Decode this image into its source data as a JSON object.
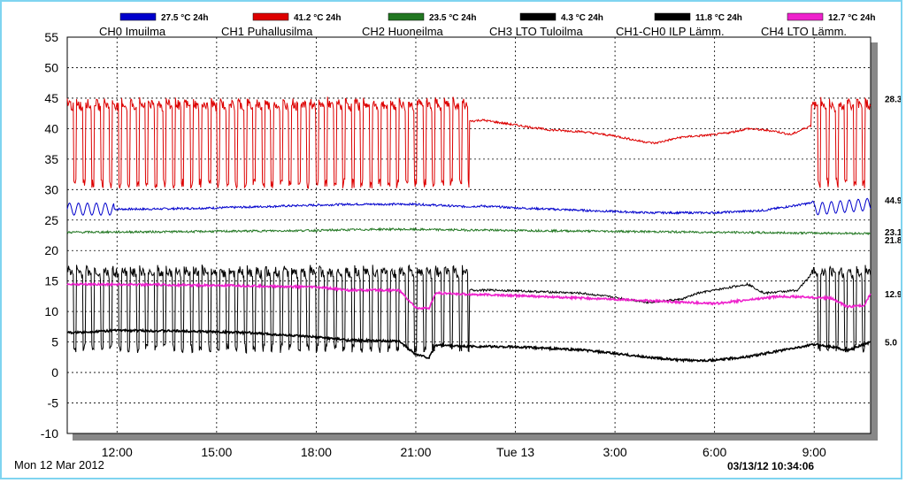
{
  "chart_data": {
    "type": "line",
    "title": "",
    "xlabel": "",
    "ylabel": "",
    "ylim": [
      -10,
      55
    ],
    "yticks": [
      55,
      50,
      45,
      40,
      35,
      30,
      25,
      20,
      15,
      10,
      5,
      0,
      -5,
      -10
    ],
    "xlim_hours": [
      10.5,
      34.7
    ],
    "xticks": [
      {
        "label": "12:00",
        "hour": 12
      },
      {
        "label": "15:00",
        "hour": 15
      },
      {
        "label": "18:00",
        "hour": 18
      },
      {
        "label": "21:00",
        "hour": 21
      },
      {
        "label": "Tue 13",
        "hour": 24
      },
      {
        "label": "3:00",
        "hour": 27
      },
      {
        "label": "6:00",
        "hour": 30
      },
      {
        "label": "9:00",
        "hour": 33
      }
    ],
    "grid": true,
    "start_label": "Mon 12 Mar 2012",
    "timestamp": "03/13/12 10:34:06",
    "legend": [
      {
        "color": "#0000cc",
        "text": "27.5 °C 24h"
      },
      {
        "color": "#dd0000",
        "text": "41.2 °C 24h"
      },
      {
        "color": "#227722",
        "text": "23.5 °C 24h"
      },
      {
        "color": "#000000",
        "text": "4.3 °C 24h"
      },
      {
        "color": "#000000",
        "text": "11.8 °C 24h"
      },
      {
        "color": "#ee22cc",
        "text": "12.7 °C 24h"
      }
    ],
    "series": [
      {
        "name": "CH0 Imuilma",
        "color": "#0000cc",
        "end_value": "28.3",
        "cycling": [
          [
            10.5,
            11.9
          ],
          [
            32.9,
            34.7
          ]
        ],
        "cycle_amp": 1.0,
        "cycle_period": 0.27,
        "points": [
          [
            10.5,
            26.8
          ],
          [
            13,
            26.8
          ],
          [
            15,
            27.0
          ],
          [
            17,
            27.3
          ],
          [
            19,
            27.6
          ],
          [
            21,
            27.6
          ],
          [
            22.5,
            27.2
          ],
          [
            23,
            27.3
          ],
          [
            24,
            27.0
          ],
          [
            26,
            26.6
          ],
          [
            28,
            26.2
          ],
          [
            30,
            26.2
          ],
          [
            31.5,
            26.6
          ],
          [
            32.9,
            27.8
          ],
          [
            33,
            26.8
          ],
          [
            34.7,
            27.6
          ]
        ]
      },
      {
        "name": "CH1 Puhallusilma",
        "color": "#dd0000",
        "end_value": "44.9",
        "cycling": [
          [
            10.5,
            22.6
          ],
          [
            32.9,
            34.7
          ]
        ],
        "cycle_high": 44.5,
        "cycle_low": 31.0,
        "cycle_period": 0.27,
        "points": [
          [
            22.6,
            41.2
          ],
          [
            23,
            41.4
          ],
          [
            24,
            40.6
          ],
          [
            25,
            39.8
          ],
          [
            26,
            39.5
          ],
          [
            27,
            38.8
          ],
          [
            27.7,
            38.0
          ],
          [
            28.2,
            37.6
          ],
          [
            29,
            38.6
          ],
          [
            30,
            39.0
          ],
          [
            30.5,
            39.4
          ],
          [
            31,
            40.0
          ],
          [
            31.8,
            39.6
          ],
          [
            32.3,
            39.0
          ],
          [
            32.9,
            40.5
          ]
        ]
      },
      {
        "name": "CH2 Huoneilma",
        "color": "#227722",
        "end_value": "23.1",
        "cycling": [],
        "points": [
          [
            10.5,
            23.0
          ],
          [
            14,
            23.1
          ],
          [
            18,
            23.3
          ],
          [
            20,
            23.5
          ],
          [
            22,
            23.4
          ],
          [
            26,
            23.2
          ],
          [
            30,
            23.0
          ],
          [
            34.7,
            22.8
          ]
        ]
      },
      {
        "name": "CH3 LTO Tuloilma",
        "color": "#000000",
        "end_value": "21.8",
        "cycling": [
          [
            10.5,
            22.6
          ],
          [
            32.9,
            34.7
          ]
        ],
        "cycle_high": 17.0,
        "cycle_low": 4.0,
        "cycle_period": 0.27,
        "points": [
          [
            22.6,
            13.5
          ],
          [
            23.5,
            13.5
          ],
          [
            25,
            13.2
          ],
          [
            26,
            13.0
          ],
          [
            27,
            12.3
          ],
          [
            28,
            11.5
          ],
          [
            29,
            12.0
          ],
          [
            29.5,
            13.0
          ],
          [
            30,
            13.5
          ],
          [
            31,
            14.5
          ],
          [
            31.5,
            13.0
          ],
          [
            32.5,
            13.5
          ],
          [
            32.9,
            16.0
          ]
        ]
      },
      {
        "name": "CH1-CH0 ILP Lämm.",
        "color": "#000000",
        "end_value": "5.0",
        "cycling": [],
        "points": [
          [
            10.5,
            6.5
          ],
          [
            12,
            6.9
          ],
          [
            14,
            6.8
          ],
          [
            16,
            6.5
          ],
          [
            18,
            5.8
          ],
          [
            19,
            5.3
          ],
          [
            20.5,
            5.1
          ],
          [
            21,
            3.0
          ],
          [
            21.4,
            2.4
          ],
          [
            21.6,
            4.5
          ],
          [
            22.5,
            4.3
          ],
          [
            24,
            4.2
          ],
          [
            26,
            3.7
          ],
          [
            28,
            2.5
          ],
          [
            29,
            2.0
          ],
          [
            30,
            2.0
          ],
          [
            31,
            2.6
          ],
          [
            32,
            3.6
          ],
          [
            33,
            4.6
          ],
          [
            33.5,
            4.3
          ],
          [
            34,
            3.6
          ],
          [
            34.7,
            5.0
          ]
        ]
      },
      {
        "name": "CH4 LTO Lämm.",
        "color": "#ee22cc",
        "end_value": "12.9",
        "cycling": [],
        "points": [
          [
            10.5,
            14.5
          ],
          [
            13,
            14.4
          ],
          [
            16,
            14.2
          ],
          [
            18,
            14.0
          ],
          [
            19,
            13.5
          ],
          [
            20.5,
            13.5
          ],
          [
            21,
            10.6
          ],
          [
            21.4,
            10.5
          ],
          [
            21.6,
            13.0
          ],
          [
            24,
            12.6
          ],
          [
            27,
            12.0
          ],
          [
            30,
            11.3
          ],
          [
            32,
            12.5
          ],
          [
            33.5,
            12.2
          ],
          [
            34,
            10.8
          ],
          [
            34.5,
            11.0
          ],
          [
            34.7,
            12.9
          ]
        ]
      }
    ]
  }
}
